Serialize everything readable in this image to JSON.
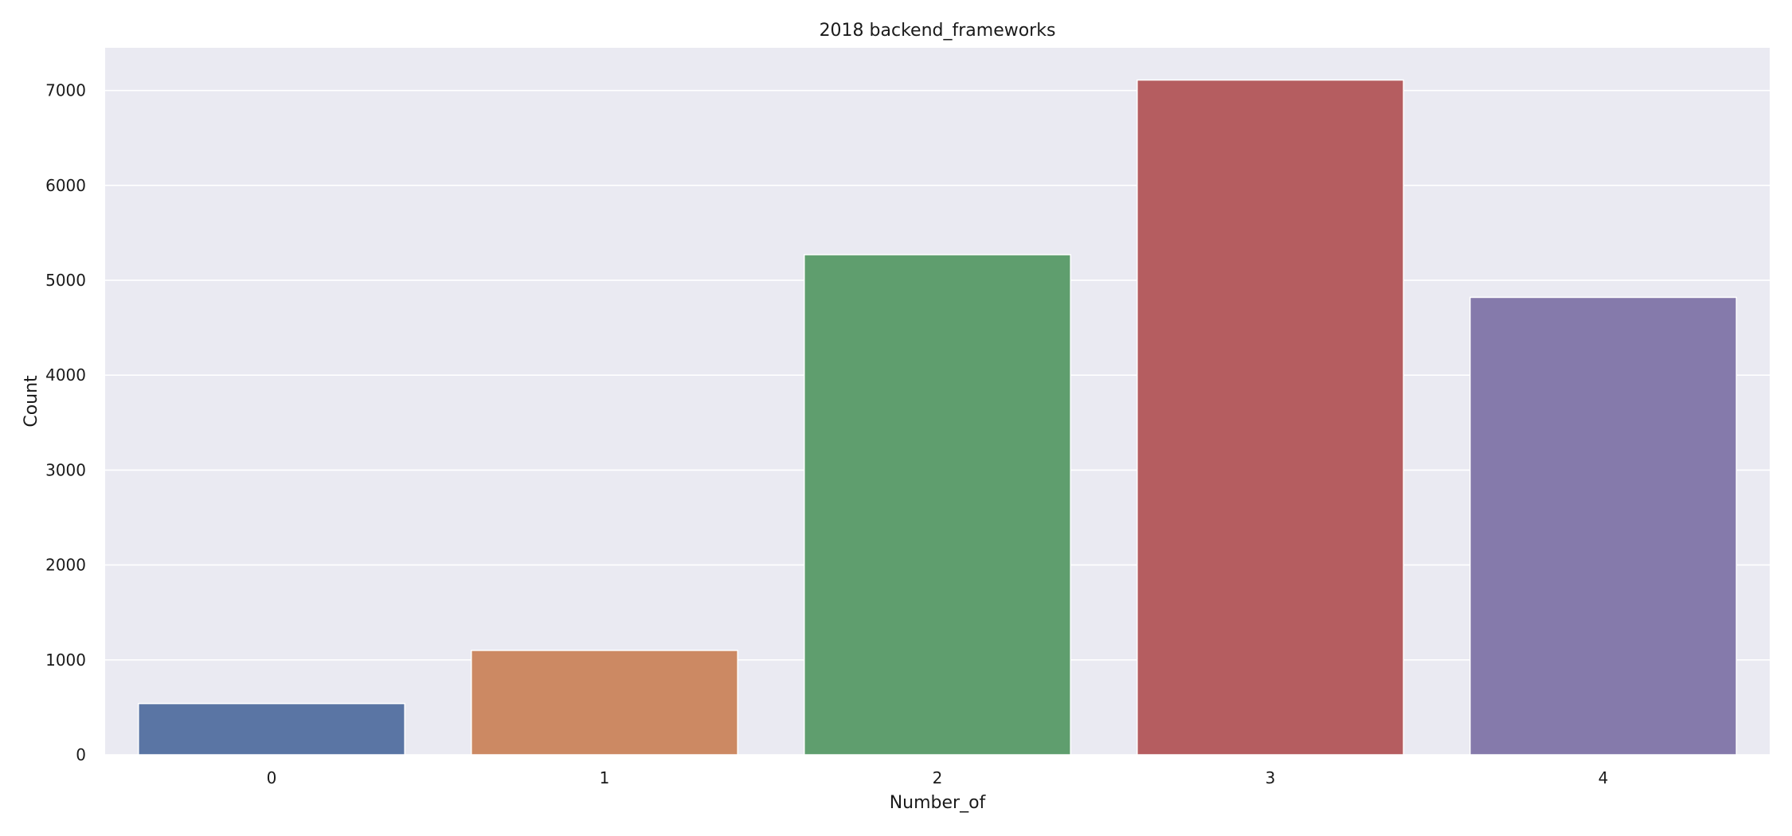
{
  "chart_data": {
    "type": "bar",
    "title": "2018 backend_frameworks",
    "xlabel": "Number_of",
    "ylabel": "Count",
    "categories": [
      "0",
      "1",
      "2",
      "3",
      "4"
    ],
    "values": [
      540,
      1100,
      5270,
      7110,
      4820
    ],
    "ylim": [
      0,
      7450
    ],
    "yticks": [
      0,
      1000,
      2000,
      3000,
      4000,
      5000,
      6000,
      7000
    ],
    "grid": true,
    "colors": [
      "#5a75a4",
      "#cc8963",
      "#5f9e6e",
      "#b55d60",
      "#857aab"
    ],
    "background": "#eaeaf2"
  }
}
